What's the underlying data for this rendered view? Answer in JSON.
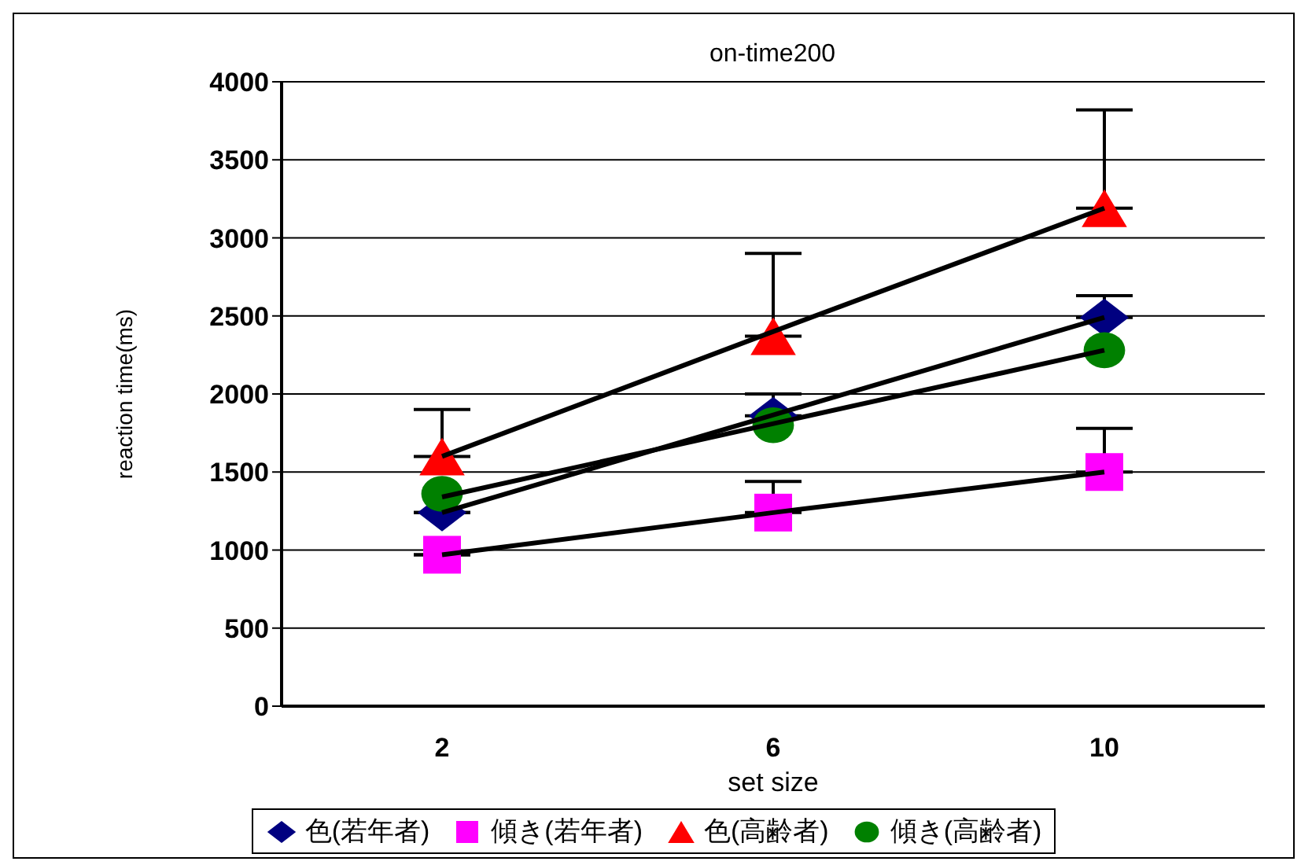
{
  "chart_data": {
    "type": "scatter",
    "title": "on-time200",
    "xlabel": "set size",
    "ylabel": "reaction time(ms)",
    "categories": [
      "2",
      "6",
      "10"
    ],
    "ylim": [
      0,
      4000
    ],
    "yticks": [
      0,
      500,
      1000,
      1500,
      2000,
      2500,
      3000,
      3500,
      4000
    ],
    "grid": "y",
    "legend": "bottom",
    "series": [
      {
        "name": "色(若年者)",
        "color": "#000080",
        "marker": "diamond",
        "values": [
          1240,
          1860,
          2490
        ],
        "errors": [
          null,
          [
            1860,
            2000
          ],
          [
            2490,
            2630
          ]
        ]
      },
      {
        "name": "傾き(若年者)",
        "color": "#ff00ff",
        "marker": "square",
        "values": [
          970,
          1240,
          1500
        ],
        "errors": [
          null,
          [
            1240,
            1440
          ],
          [
            1500,
            1780
          ]
        ]
      },
      {
        "name": "色(高齢者)",
        "color": "#ff0000",
        "marker": "triangle",
        "values": [
          1600,
          2370,
          3190
        ],
        "errors": [
          [
            1600,
            1900
          ],
          [
            2370,
            2900
          ],
          [
            3190,
            3820
          ]
        ]
      },
      {
        "name": "傾き(高齢者)",
        "color": "#008000",
        "marker": "circle",
        "values": [
          1360,
          1800,
          2280
        ]
      },
      {
        "type": "line",
        "color": "#000000",
        "marker": "none",
        "values": [
          1240,
          null,
          2490
        ]
      },
      {
        "type": "line",
        "color": "#000000",
        "marker": "none",
        "values": [
          970,
          1240,
          1500
        ]
      },
      {
        "type": "line",
        "color": "#000000",
        "marker": "none",
        "values": [
          1600,
          2400,
          3190
        ]
      },
      {
        "type": "line",
        "color": "#000000",
        "marker": "none",
        "values": [
          1340,
          null,
          2280
        ]
      }
    ]
  }
}
